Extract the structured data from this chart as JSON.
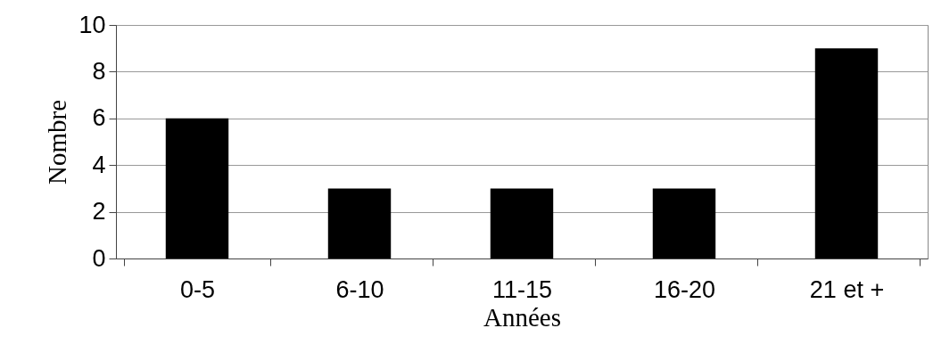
{
  "chart_data": {
    "type": "bar",
    "xlabel": "Années",
    "ylabel": "Nombre",
    "categories": [
      "0-5",
      "6-10",
      "11-15",
      "16-20",
      "21 et +"
    ],
    "values": [
      6,
      3,
      3,
      3,
      9
    ],
    "color": "#000000",
    "ylim": [
      0,
      10
    ],
    "yticks": [
      0,
      2,
      4,
      6,
      8,
      10
    ],
    "grid": "y"
  }
}
